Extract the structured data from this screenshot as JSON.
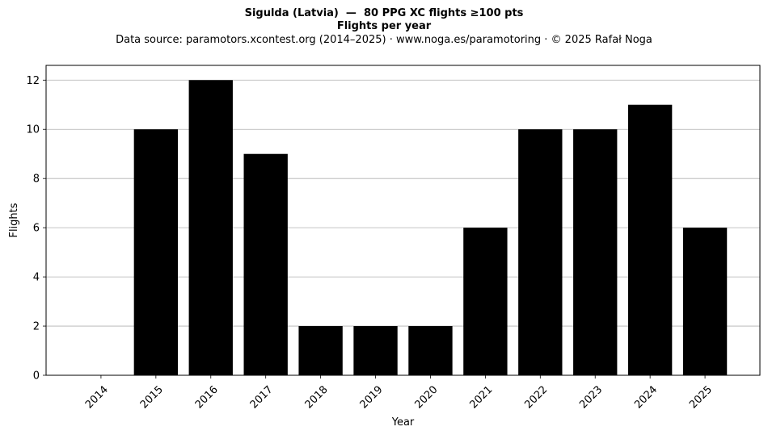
{
  "header": {
    "title": "Sigulda (Latvia)  —  80 PPG XC flights ≥100 pts",
    "subtitle": "Flights per year",
    "source": "Data source: paramotors.xcontest.org (2014–2025)  ·  www.noga.es/paramotoring  ·  © 2025 Rafał Noga"
  },
  "chart_data": {
    "type": "bar",
    "title": "Sigulda (Latvia)  —  80 PPG XC flights ≥100 pts",
    "subtitle": "Flights per year",
    "xlabel": "Year",
    "ylabel": "Flights",
    "categories": [
      "2014",
      "2015",
      "2016",
      "2017",
      "2018",
      "2019",
      "2020",
      "2021",
      "2022",
      "2023",
      "2024",
      "2025"
    ],
    "values": [
      0,
      10,
      12,
      9,
      2,
      2,
      2,
      6,
      10,
      10,
      11,
      6
    ],
    "ylim": [
      0,
      12.6
    ],
    "yticks": [
      0,
      2,
      4,
      6,
      8,
      10,
      12
    ],
    "grid": "horizontal",
    "bar_color": "#000000",
    "grid_color": "#b0b0b0"
  }
}
